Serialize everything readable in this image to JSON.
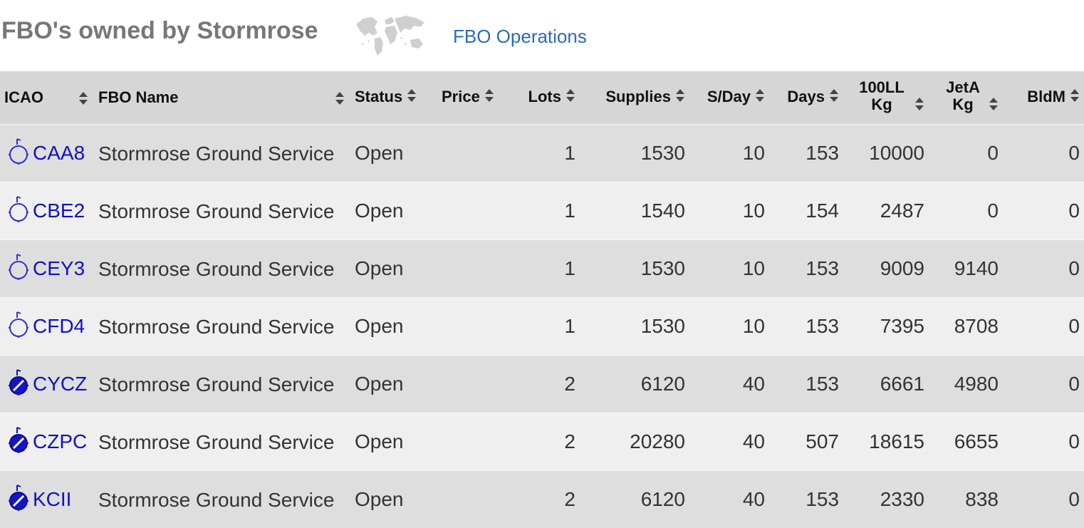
{
  "header": {
    "title": "FBO's owned by Stormrose",
    "ops_link": "FBO Operations",
    "world_icon": "world-map-icon"
  },
  "colors": {
    "title": "#777777",
    "link": "#2a6cb5",
    "icao_link": "#1010c8",
    "header_bg": "#d6d6d6",
    "row_odd": "#dedede",
    "row_even": "#efefef"
  },
  "table": {
    "columns": [
      {
        "key": "icao",
        "label": "ICAO"
      },
      {
        "key": "name",
        "label": "FBO Name"
      },
      {
        "key": "status",
        "label": "Status"
      },
      {
        "key": "price",
        "label": "Price"
      },
      {
        "key": "lots",
        "label": "Lots"
      },
      {
        "key": "supplies",
        "label": "Supplies"
      },
      {
        "key": "sday",
        "label": "S/Day"
      },
      {
        "key": "days",
        "label": "Days"
      },
      {
        "key": "ll100",
        "label": "100LL Kg"
      },
      {
        "key": "jeta",
        "label": "JetA Kg"
      },
      {
        "key": "bldm",
        "label": "BldM"
      }
    ],
    "rows": [
      {
        "icao": "CAA8",
        "icon": "airport-outline-icon",
        "name": "Stormrose Ground Service",
        "status": "Open",
        "price": "",
        "lots": "1",
        "supplies": "1530",
        "sday": "10",
        "days": "153",
        "ll100": "10000",
        "jeta": "0",
        "bldm": "0"
      },
      {
        "icao": "CBE2",
        "icon": "airport-outline-icon",
        "name": "Stormrose Ground Service",
        "status": "Open",
        "price": "",
        "lots": "1",
        "supplies": "1540",
        "sday": "10",
        "days": "154",
        "ll100": "2487",
        "jeta": "0",
        "bldm": "0"
      },
      {
        "icao": "CEY3",
        "icon": "airport-outline-icon",
        "name": "Stormrose Ground Service",
        "status": "Open",
        "price": "",
        "lots": "1",
        "supplies": "1530",
        "sday": "10",
        "days": "153",
        "ll100": "9009",
        "jeta": "9140",
        "bldm": "0"
      },
      {
        "icao": "CFD4",
        "icon": "airport-outline-icon",
        "name": "Stormrose Ground Service",
        "status": "Open",
        "price": "",
        "lots": "1",
        "supplies": "1530",
        "sday": "10",
        "days": "153",
        "ll100": "7395",
        "jeta": "8708",
        "bldm": "0"
      },
      {
        "icao": "CYCZ",
        "icon": "airport-filled-icon",
        "name": "Stormrose Ground Service",
        "status": "Open",
        "price": "",
        "lots": "2",
        "supplies": "6120",
        "sday": "40",
        "days": "153",
        "ll100": "6661",
        "jeta": "4980",
        "bldm": "0"
      },
      {
        "icao": "CZPC",
        "icon": "airport-filled-icon",
        "name": "Stormrose Ground Service",
        "status": "Open",
        "price": "",
        "lots": "2",
        "supplies": "20280",
        "sday": "40",
        "days": "507",
        "ll100": "18615",
        "jeta": "6655",
        "bldm": "0"
      },
      {
        "icao": "KCII",
        "icon": "airport-filled-icon",
        "name": "Stormrose Ground Service",
        "status": "Open",
        "price": "",
        "lots": "2",
        "supplies": "6120",
        "sday": "40",
        "days": "153",
        "ll100": "2330",
        "jeta": "838",
        "bldm": "0"
      }
    ]
  }
}
